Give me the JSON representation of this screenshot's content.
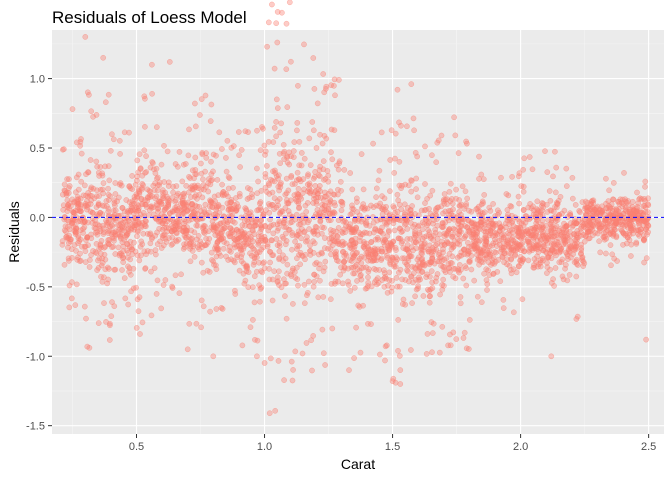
{
  "chart_data": {
    "type": "scatter",
    "title": "Residuals of Loess Model",
    "xlabel": "Carat",
    "ylabel": "Residuals",
    "xlim": [
      0.17,
      2.56
    ],
    "ylim": [
      -1.56,
      1.35
    ],
    "x_ticks": [
      {
        "value": 0.5,
        "label": "0.5"
      },
      {
        "value": 1.0,
        "label": "1.0"
      },
      {
        "value": 1.5,
        "label": "1.5"
      },
      {
        "value": 2.0,
        "label": "2.0"
      },
      {
        "value": 2.5,
        "label": "2.5"
      }
    ],
    "y_ticks": [
      {
        "value": -1.5,
        "label": "-1.5"
      },
      {
        "value": -1.0,
        "label": "-1.0"
      },
      {
        "value": -0.5,
        "label": "-0.5"
      },
      {
        "value": 0.0,
        "label": "0.0"
      },
      {
        "value": 0.5,
        "label": "0.5"
      },
      {
        "value": 1.0,
        "label": "1.0"
      }
    ],
    "grid": true,
    "reference_line": {
      "y": 0,
      "color": "#0000ff",
      "style": "dashed"
    },
    "point_color": "#fa8072",
    "point_alpha": 0.4,
    "clusters": [
      {
        "x": [
          0.21,
          0.3
        ],
        "low": -0.45,
        "high": 0.42
      },
      {
        "x": [
          0.3,
          0.4
        ],
        "low": -0.65,
        "high": 0.6
      },
      {
        "x": [
          0.4,
          0.5
        ],
        "low": -0.5,
        "high": 0.4
      },
      {
        "x": [
          0.5,
          0.6
        ],
        "low": -0.55,
        "high": 0.62
      },
      {
        "x": [
          0.6,
          0.7
        ],
        "low": -0.4,
        "high": 0.35
      },
      {
        "x": [
          0.7,
          0.8
        ],
        "low": -0.55,
        "high": 0.62
      },
      {
        "x": [
          0.8,
          0.9
        ],
        "low": -0.5,
        "high": 0.4
      },
      {
        "x": [
          0.9,
          1.0
        ],
        "low": -0.7,
        "high": 0.42
      },
      {
        "x": [
          1.0,
          1.1
        ],
        "low": -0.95,
        "high": 1.05
      },
      {
        "x": [
          1.1,
          1.2
        ],
        "low": -0.85,
        "high": 0.85
      },
      {
        "x": [
          1.2,
          1.3
        ],
        "low": -0.8,
        "high": 0.8
      },
      {
        "x": [
          1.3,
          1.5
        ],
        "low": -0.75,
        "high": 0.4
      },
      {
        "x": [
          1.5,
          1.6
        ],
        "low": -0.9,
        "high": 0.6
      },
      {
        "x": [
          1.6,
          1.7
        ],
        "low": -0.75,
        "high": 0.35
      },
      {
        "x": [
          1.7,
          1.8
        ],
        "low": -0.7,
        "high": 0.45
      },
      {
        "x": [
          1.8,
          2.0
        ],
        "low": -0.55,
        "high": 0.25
      },
      {
        "x": [
          2.0,
          2.25
        ],
        "low": -0.55,
        "high": 0.28
      },
      {
        "x": [
          2.25,
          2.5
        ],
        "low": -0.25,
        "high": 0.22
      }
    ],
    "outliers": [
      {
        "x": 0.3,
        "y": 1.3
      },
      {
        "x": 0.37,
        "y": 1.15
      },
      {
        "x": 0.56,
        "y": 1.1
      },
      {
        "x": 0.63,
        "y": 1.12
      },
      {
        "x": 1.01,
        "y": 1.23
      },
      {
        "x": 1.05,
        "y": 1.26
      },
      {
        "x": 1.02,
        "y": -1.41
      },
      {
        "x": 0.7,
        "y": -0.95
      },
      {
        "x": 0.97,
        "y": -1.0
      },
      {
        "x": 1.5,
        "y": -1.18
      },
      {
        "x": 1.53,
        "y": -1.1
      },
      {
        "x": 1.33,
        "y": -1.1
      },
      {
        "x": 0.8,
        "y": -1.0
      },
      {
        "x": 2.12,
        "y": -1.0
      },
      {
        "x": 2.49,
        "y": -0.88
      },
      {
        "x": 0.38,
        "y": 0.83
      },
      {
        "x": 0.25,
        "y": 0.78
      }
    ]
  }
}
